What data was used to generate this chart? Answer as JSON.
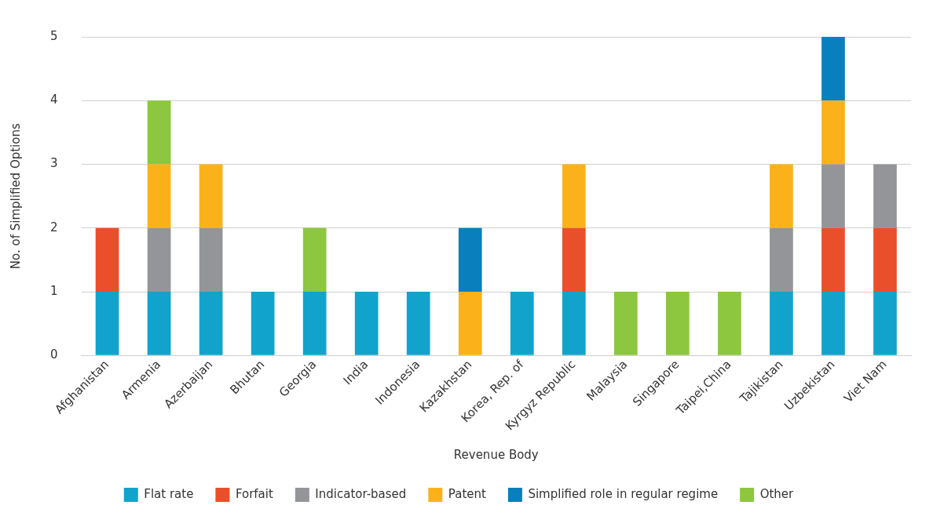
{
  "chart_data": {
    "type": "bar",
    "stacked": true,
    "xlabel": "Revenue Body",
    "ylabel": "No. of Simplified Options",
    "categories": [
      "Afghanistan",
      "Armenia",
      "Azerbaijan",
      "Bhutan",
      "Georgia",
      "India",
      "Indonesia",
      "Kazakhstan",
      "Korea, Rep. of",
      "Kyrgyz Republic",
      "Malaysia",
      "Singapore",
      "Taipei,China",
      "Tajikistan",
      "Uzbekistan",
      "Viet Nam"
    ],
    "series": [
      {
        "name": "Flat rate",
        "color": "#12a3cc",
        "values": [
          1,
          1,
          1,
          1,
          1,
          1,
          1,
          0,
          1,
          1,
          0,
          0,
          0,
          1,
          1,
          1
        ]
      },
      {
        "name": "Forfait",
        "color": "#ea4f2b",
        "values": [
          1,
          0,
          0,
          0,
          0,
          0,
          0,
          0,
          0,
          1,
          0,
          0,
          0,
          0,
          1,
          1
        ]
      },
      {
        "name": "Indicator-based",
        "color": "#939598",
        "values": [
          0,
          1,
          1,
          0,
          0,
          0,
          0,
          0,
          0,
          0,
          0,
          0,
          0,
          1,
          1,
          1
        ]
      },
      {
        "name": "Patent",
        "color": "#fbb21a",
        "values": [
          0,
          1,
          1,
          0,
          0,
          0,
          0,
          1,
          0,
          1,
          0,
          0,
          0,
          1,
          1,
          0
        ]
      },
      {
        "name": "Simplified role in regular regime",
        "color": "#0a7fbd",
        "values": [
          0,
          0,
          0,
          0,
          0,
          0,
          0,
          1,
          0,
          0,
          0,
          0,
          0,
          0,
          1,
          0
        ]
      },
      {
        "name": "Other",
        "color": "#8dc63f",
        "values": [
          0,
          1,
          0,
          0,
          1,
          0,
          0,
          0,
          0,
          0,
          1,
          1,
          1,
          0,
          0,
          0
        ]
      }
    ],
    "ylim": [
      0,
      5
    ],
    "yticks": [
      0,
      1,
      2,
      3,
      4,
      5
    ],
    "grid": "y",
    "legend": "bottom"
  }
}
